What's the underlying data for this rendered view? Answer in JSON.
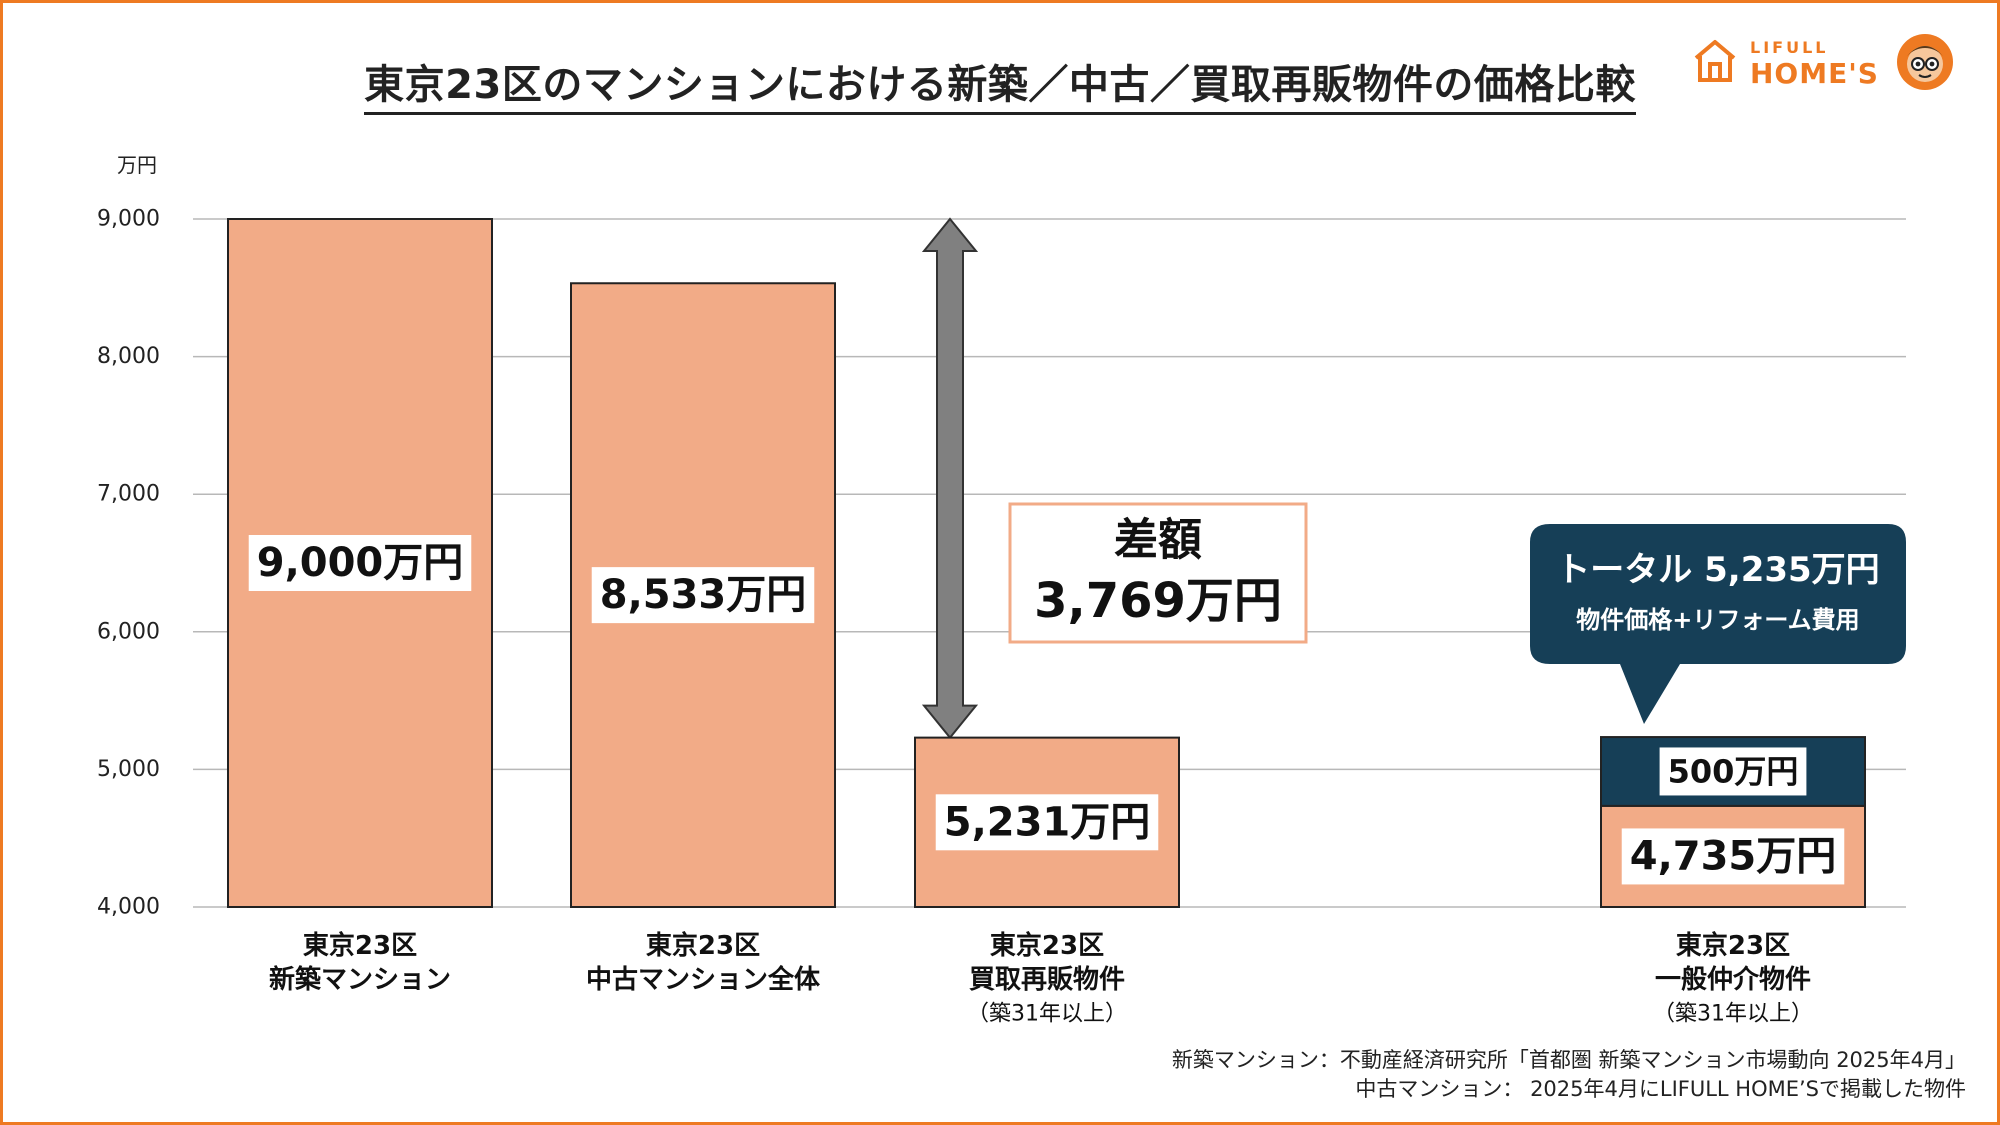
{
  "title": "東京23区のマンションにおける新築／中古／買取再販物件の価格比較",
  "logo": {
    "top": "LIFULL",
    "main": "HOME'S"
  },
  "chart_data": {
    "type": "bar",
    "unit_label": "万円",
    "ylim": [
      4000,
      9000
    ],
    "yticks": [
      4000,
      5000,
      6000,
      7000,
      8000,
      9000
    ],
    "ytick_labels": [
      "4,000",
      "5,000",
      "6,000",
      "7,000",
      "8,000",
      "9,000"
    ],
    "grid": true,
    "bars": [
      {
        "category": [
          "東京23区",
          "新築マンション"
        ],
        "value": 9000,
        "label": "9,000万円"
      },
      {
        "category": [
          "東京23区",
          "中古マンション全体"
        ],
        "value": 8533,
        "label": "8,533万円"
      },
      {
        "category": [
          "東京23区",
          "買取再販物件",
          "（築31年以上）"
        ],
        "value": 5231,
        "label": "5,231万円"
      },
      {
        "category": [
          "東京23区",
          "一般仲介物件",
          "（築31年以上）"
        ],
        "value": 4735,
        "label": "4,735万円",
        "stack": {
          "value": 500,
          "label": "500万円"
        }
      }
    ],
    "annotations": {
      "difference": {
        "line1": "差額",
        "line2": "3,769万円",
        "from": 9000,
        "to": 5231
      },
      "callout": {
        "line1": "トータル 5,235万円",
        "line2": "物件価格+リフォーム費用"
      }
    },
    "colors": {
      "bar": "#f2ab87",
      "stack": "#163f57",
      "arrow": "#808080",
      "grid": "#b8b8b8",
      "callout": "#163f57",
      "diff_border": "#f2ab87"
    }
  },
  "sources": [
    "新築マンション：不動産経済研究所「首都圏 新築マンション市場動向 2025年4月」",
    "中古マンション： 2025年4月にLIFULL HOME’Sで掲載した物件"
  ]
}
